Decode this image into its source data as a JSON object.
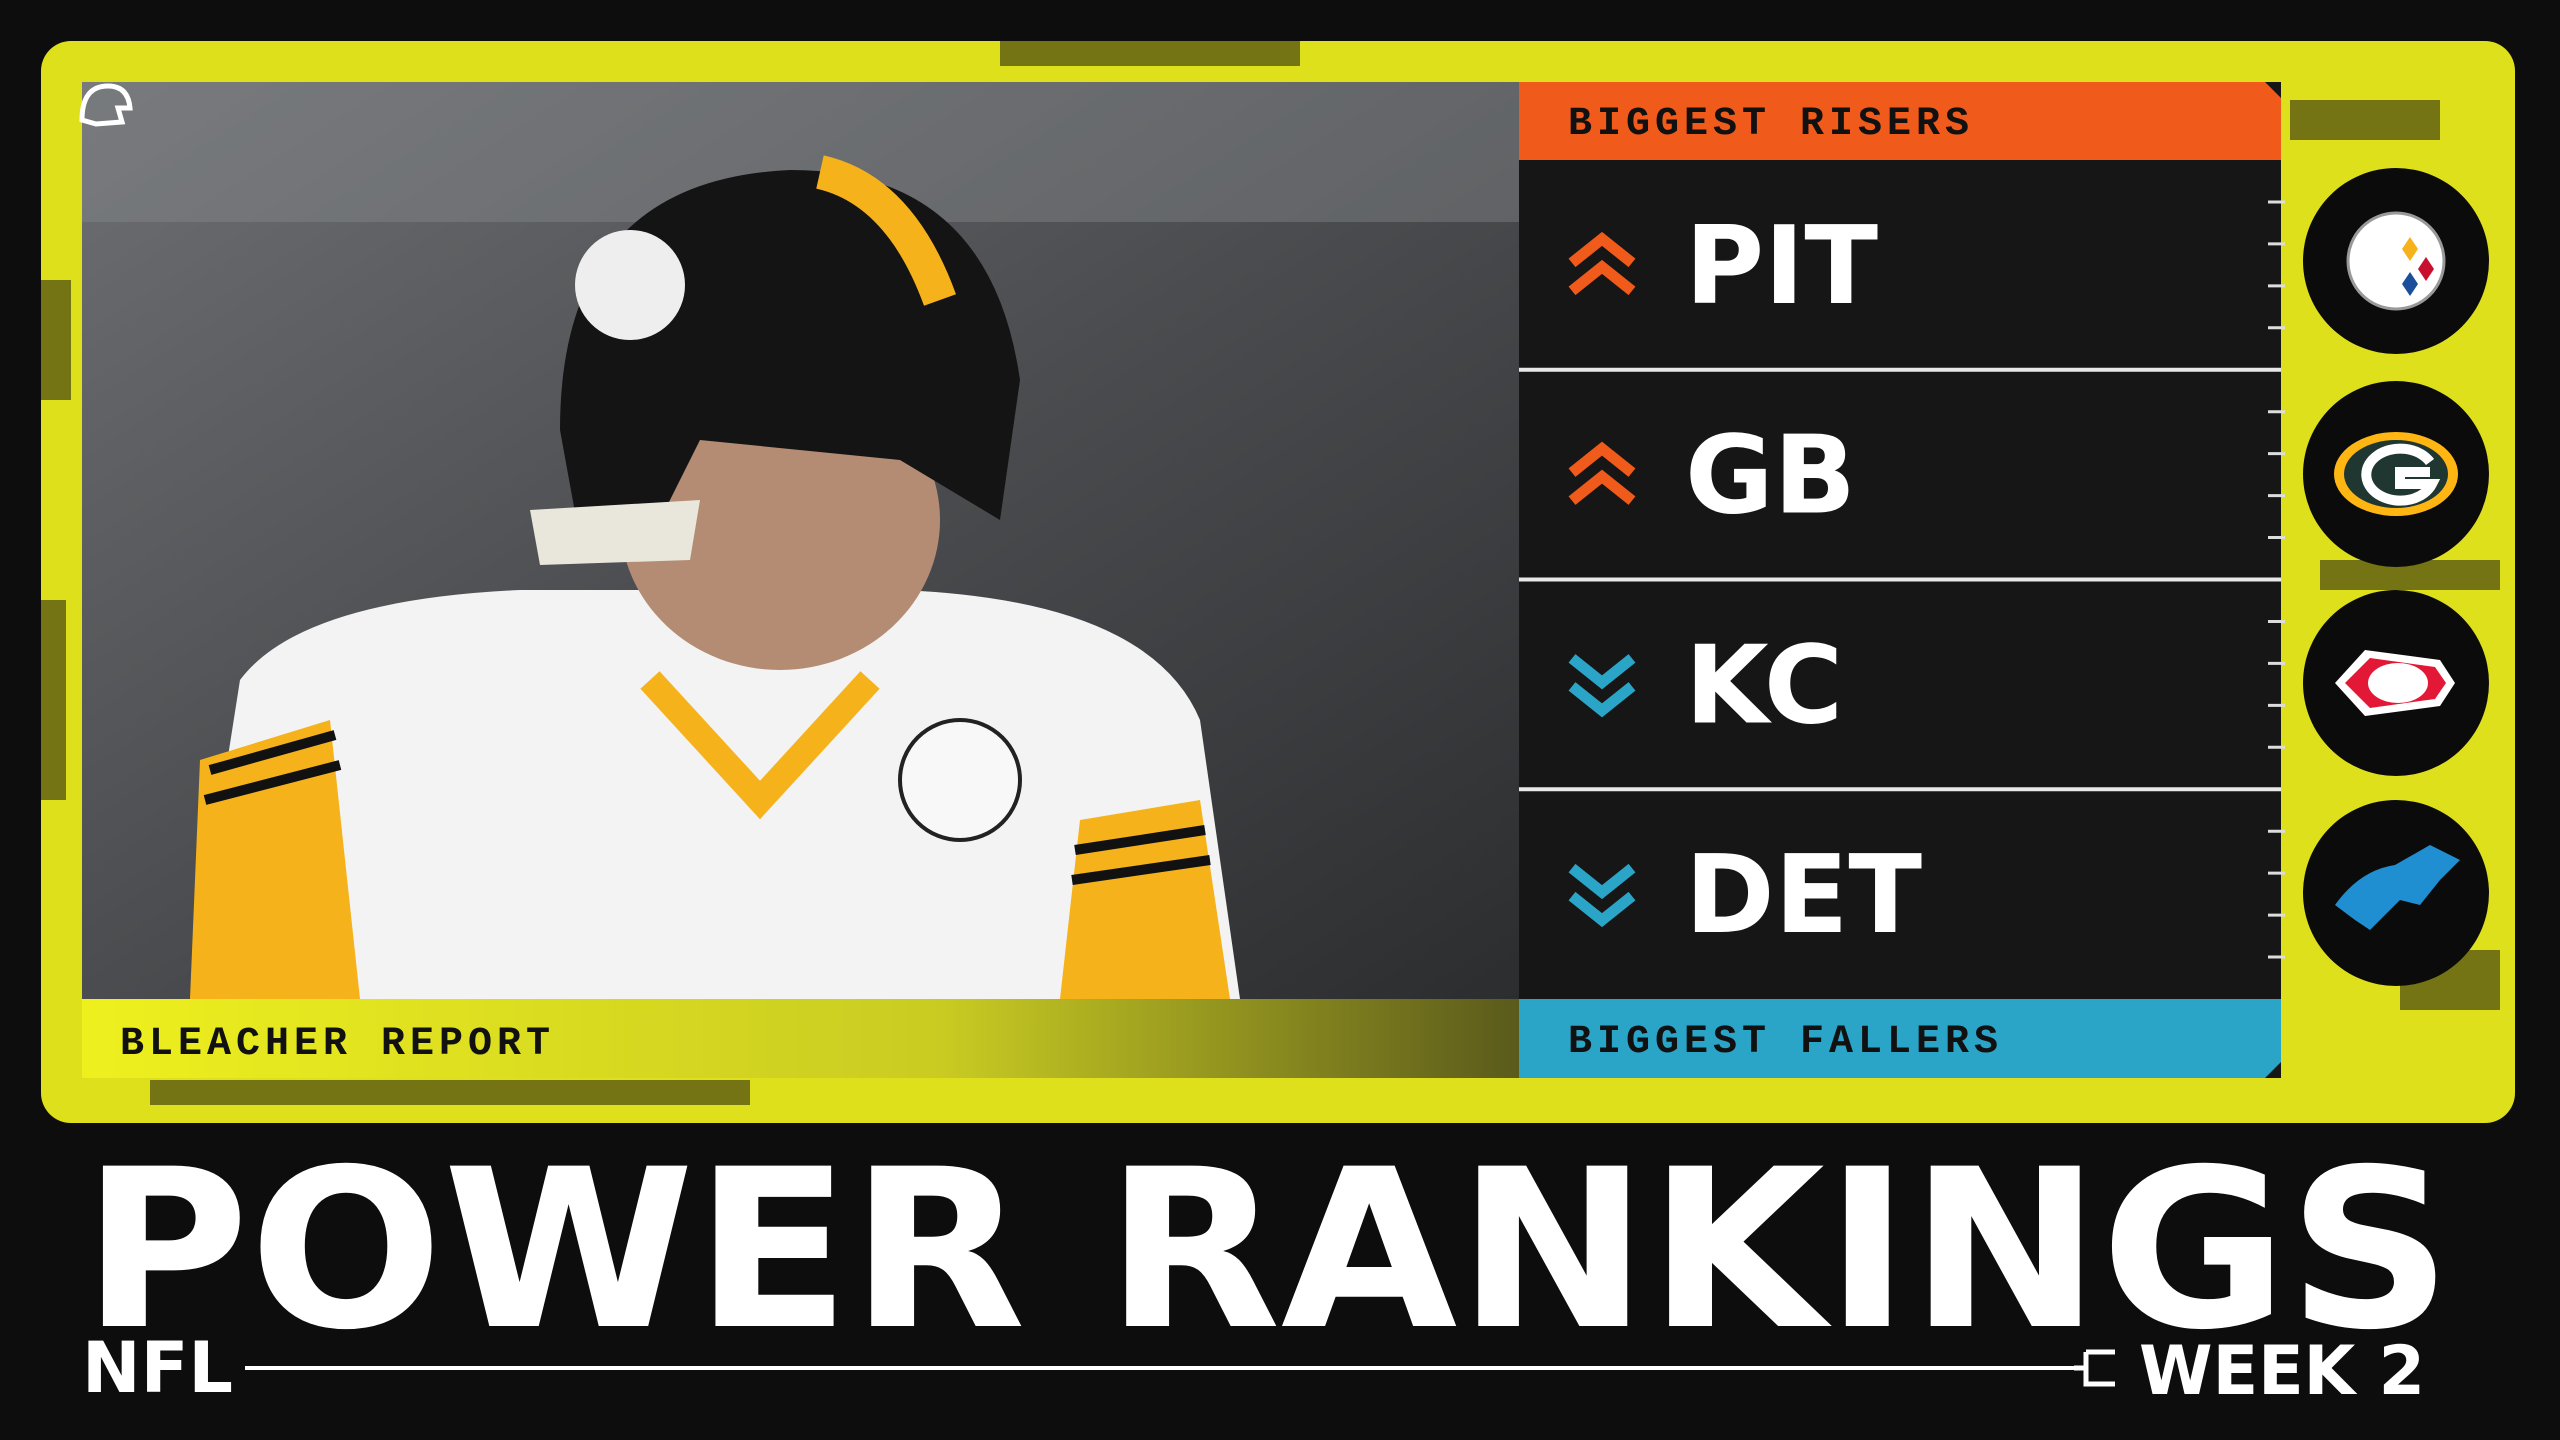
{
  "panel": {
    "risers_label": "BIGGEST RISERS",
    "fallers_label": "BIGGEST FALLERS",
    "teams": [
      {
        "abbr": "PIT",
        "trend": "up",
        "color": "#f05a1a"
      },
      {
        "abbr": "GB",
        "trend": "up",
        "color": "#f05a1a"
      },
      {
        "abbr": "KC",
        "trend": "down",
        "color": "#2aa5c8"
      },
      {
        "abbr": "DET",
        "trend": "down",
        "color": "#2aa5c8"
      }
    ]
  },
  "photo": {
    "credit": "BLEACHER REPORT"
  },
  "footer": {
    "title": "POWER RANKINGS",
    "league": "NFL",
    "week": "WEEK 2"
  }
}
